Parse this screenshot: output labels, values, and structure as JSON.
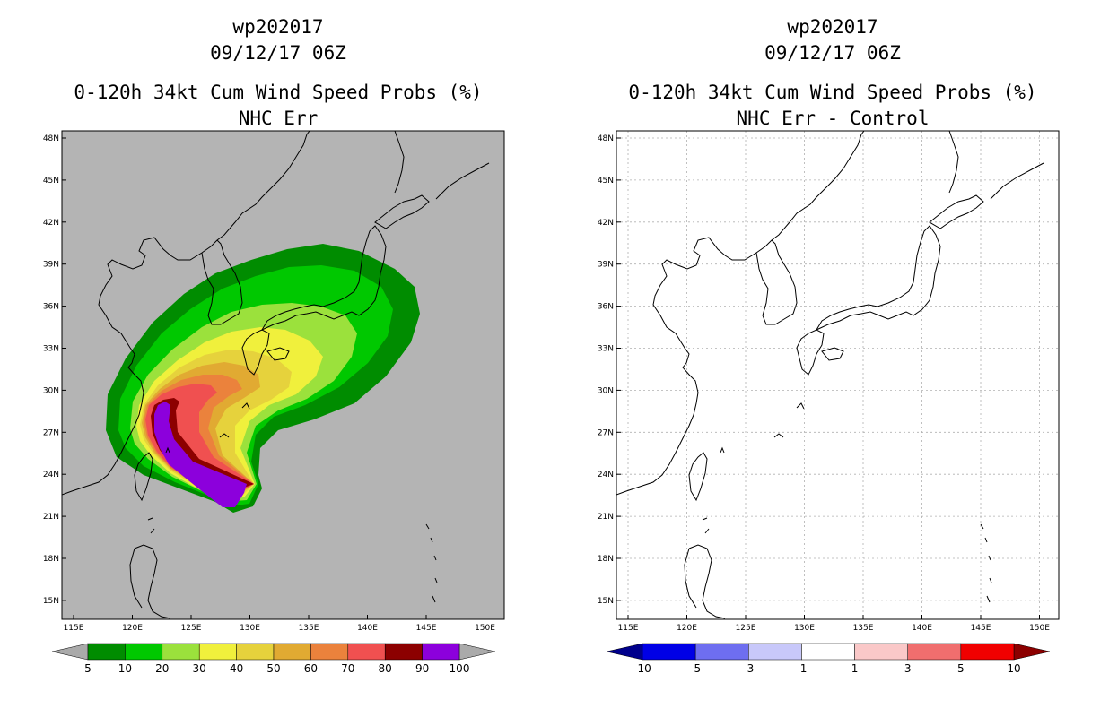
{
  "panels": [
    {
      "id": "left",
      "storm_id": "wp202017",
      "datetime": "09/12/17 06Z",
      "title": "0-120h 34kt Cum Wind Speed Probs (%)",
      "subtitle": "NHC Err",
      "background": "#b4b4b4",
      "legend": {
        "labels": [
          "5",
          "10",
          "20",
          "30",
          "40",
          "50",
          "60",
          "70",
          "80",
          "90",
          "100"
        ],
        "colors": [
          "#008c00",
          "#00c800",
          "#9be13c",
          "#f0f03c",
          "#e6d23c",
          "#e1aa32",
          "#eb823c",
          "#f05050",
          "#8c0000",
          "#8c00dc"
        ],
        "end_colors": [
          "#aaaaaa",
          "#aaaaaa"
        ]
      }
    },
    {
      "id": "right",
      "storm_id": "wp202017",
      "datetime": "09/12/17 06Z",
      "title": "0-120h 34kt Cum Wind Speed Probs (%)",
      "subtitle": "NHC Err - Control",
      "background": "#ffffff",
      "legend": {
        "labels": [
          "-10",
          "-5",
          "-3",
          "-1",
          "1",
          "3",
          "5",
          "10"
        ],
        "colors": [
          "#0000e6",
          "#6e6ef0",
          "#c8c8fa",
          "#ffffff",
          "#fac8c8",
          "#f06e6e",
          "#f00000"
        ],
        "end_colors": [
          "#00008c",
          "#8c0000"
        ]
      }
    }
  ],
  "axes": {
    "lon_ticks": [
      "115E",
      "120E",
      "125E",
      "130E",
      "135E",
      "140E",
      "145E",
      "150E"
    ],
    "lat_ticks": [
      "48N",
      "45N",
      "42N",
      "39N",
      "36N",
      "33N",
      "30N",
      "27N",
      "24N",
      "21N",
      "18N",
      "15N"
    ]
  }
}
